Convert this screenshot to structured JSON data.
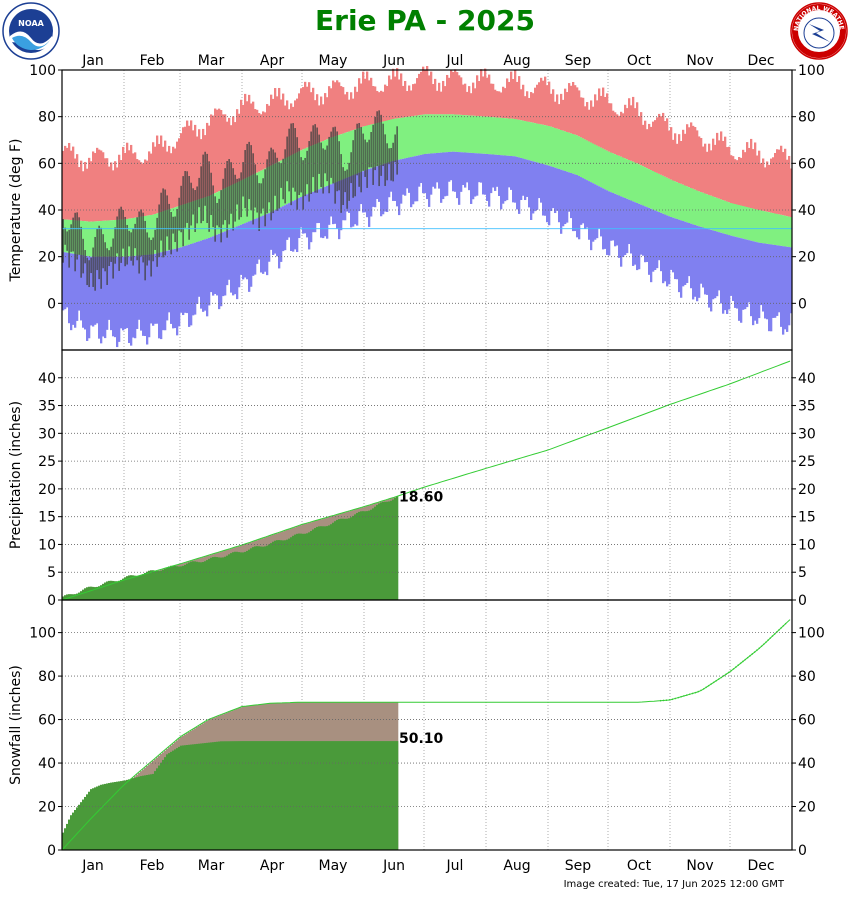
{
  "title": "Erie PA - 2025",
  "footer": "Image created: Tue, 17 Jun 2025 12:00 GMT",
  "logos": {
    "left": {
      "icon": "noaa-logo",
      "text": "NOAA",
      "colors": [
        "#1c3f94",
        "#3aa0e0"
      ]
    },
    "right": {
      "icon": "nws-logo",
      "text": "NATIONAL WEATHER SERVICE",
      "colors": [
        "#cc0000",
        "#1c3f94"
      ]
    }
  },
  "months": [
    "Jan",
    "Feb",
    "Mar",
    "Apr",
    "May",
    "Jun",
    "Jul",
    "Aug",
    "Sep",
    "Oct",
    "Nov",
    "Dec"
  ],
  "colors": {
    "record_high": "#f08080",
    "normal_range": "#80f080",
    "record_low": "#8080f0",
    "observed_bar": "#404040",
    "observed_precip": "#4a9a3a",
    "normal_precip": "#a89080",
    "normal_line": "#33cc33",
    "title": "#008000"
  },
  "chart_data": [
    {
      "type": "bar",
      "panel": "temperature",
      "ylabel": "Temperature (deg F)",
      "yticks": [
        0,
        20,
        40,
        60,
        80,
        100
      ],
      "ylim": [
        -20,
        100
      ],
      "xlim_days": [
        1,
        365
      ],
      "grid": true,
      "series": [
        {
          "key": "record_high",
          "x_day": [
            1,
            15,
            32,
            46,
            60,
            74,
            91,
            105,
            121,
            135,
            152,
            166,
            182,
            196,
            213,
            227,
            244,
            258,
            274,
            288,
            305,
            319,
            335,
            349,
            365
          ],
          "values": [
            64,
            62,
            63,
            65,
            72,
            78,
            84,
            86,
            90,
            91,
            94,
            95,
            97,
            96,
            95,
            94,
            92,
            90,
            86,
            82,
            75,
            72,
            66,
            64,
            62
          ]
        },
        {
          "key": "normal_high",
          "x_day": [
            1,
            15,
            32,
            46,
            60,
            74,
            91,
            105,
            121,
            135,
            152,
            166,
            182,
            196,
            213,
            227,
            244,
            258,
            274,
            288,
            305,
            319,
            335,
            349,
            365
          ],
          "values": [
            36,
            35,
            36,
            38,
            42,
            46,
            53,
            59,
            66,
            71,
            76,
            79,
            81,
            81,
            80,
            79,
            76,
            72,
            65,
            60,
            53,
            48,
            43,
            40,
            37
          ]
        },
        {
          "key": "normal_low",
          "x_day": [
            1,
            15,
            32,
            46,
            60,
            74,
            91,
            105,
            121,
            135,
            152,
            166,
            182,
            196,
            213,
            227,
            244,
            258,
            274,
            288,
            305,
            319,
            335,
            349,
            365
          ],
          "values": [
            22,
            20,
            20,
            21,
            24,
            28,
            34,
            39,
            46,
            51,
            57,
            61,
            64,
            65,
            64,
            63,
            59,
            55,
            48,
            43,
            37,
            33,
            29,
            26,
            24
          ]
        },
        {
          "key": "record_low",
          "x_day": [
            1,
            15,
            32,
            46,
            60,
            74,
            91,
            105,
            121,
            135,
            152,
            166,
            182,
            196,
            213,
            227,
            244,
            258,
            274,
            288,
            305,
            319,
            335,
            349,
            365
          ],
          "values": [
            -5,
            -12,
            -14,
            -12,
            -8,
            0,
            8,
            18,
            28,
            32,
            38,
            43,
            47,
            48,
            47,
            44,
            38,
            32,
            24,
            18,
            10,
            4,
            -2,
            -6,
            -10
          ]
        },
        {
          "key": "observed_high",
          "x_day": [
            1,
            8,
            15,
            22,
            29,
            36,
            43,
            50,
            57,
            64,
            71,
            78,
            85,
            92,
            99,
            106,
            113,
            120,
            127,
            134,
            141,
            148,
            155,
            162,
            168
          ],
          "values": [
            40,
            32,
            24,
            28,
            34,
            38,
            30,
            42,
            44,
            52,
            60,
            50,
            56,
            64,
            58,
            60,
            72,
            68,
            70,
            74,
            62,
            70,
            78,
            74,
            72
          ]
        },
        {
          "key": "observed_low",
          "x_day": [
            1,
            8,
            15,
            22,
            29,
            36,
            43,
            50,
            57,
            64,
            71,
            78,
            85,
            92,
            99,
            106,
            113,
            120,
            127,
            134,
            141,
            148,
            155,
            162,
            168
          ],
          "values": [
            22,
            18,
            8,
            12,
            18,
            20,
            14,
            22,
            26,
            32,
            38,
            30,
            34,
            42,
            36,
            40,
            48,
            44,
            50,
            52,
            42,
            50,
            56,
            54,
            56
          ]
        }
      ]
    },
    {
      "type": "area",
      "panel": "precipitation",
      "ylabel": "Precipitation (inches)",
      "yticks": [
        0,
        5,
        10,
        15,
        20,
        25,
        30,
        35,
        40
      ],
      "ylim": [
        0,
        45
      ],
      "grid": true,
      "annotation": "18.60",
      "series": [
        {
          "key": "observed_precip",
          "x_day": [
            1,
            15,
            32,
            46,
            60,
            74,
            91,
            105,
            121,
            135,
            152,
            168
          ],
          "values": [
            0.5,
            2.3,
            4.0,
            5.2,
            6.3,
            7.3,
            8.8,
            10.2,
            12.0,
            13.8,
            16.0,
            18.6
          ]
        },
        {
          "key": "normal_precip",
          "x_day": [
            1,
            32,
            60,
            91,
            121,
            152,
            168,
            182,
            213,
            244,
            274,
            305,
            335,
            365
          ],
          "values": [
            0,
            3.6,
            6.5,
            9.9,
            13.6,
            16.8,
            18.6,
            20.3,
            23.7,
            27.0,
            31.0,
            35.2,
            38.9,
            43.0
          ]
        }
      ]
    },
    {
      "type": "area",
      "panel": "snowfall",
      "ylabel": "Snowfall (inches)",
      "yticks": [
        0,
        20,
        40,
        60,
        80,
        100
      ],
      "ylim": [
        0,
        115
      ],
      "grid": true,
      "annotation": "50.10",
      "series": [
        {
          "key": "observed_snow",
          "x_day": [
            1,
            5,
            10,
            15,
            20,
            25,
            32,
            40,
            46,
            53,
            60,
            70,
            80,
            91,
            121,
            152,
            168
          ],
          "values": [
            8,
            16,
            22,
            28,
            30,
            31,
            32,
            34,
            35,
            44,
            48,
            49,
            50,
            50.1,
            50.1,
            50.1,
            50.1
          ]
        },
        {
          "key": "normal_snow",
          "x_day": [
            1,
            15,
            32,
            46,
            60,
            74,
            91,
            105,
            121,
            135,
            152,
            168,
            200,
            230,
            260,
            290,
            305,
            320,
            335,
            350,
            365
          ],
          "values": [
            0,
            14,
            30,
            41,
            52,
            60,
            66,
            67.5,
            68,
            68,
            68,
            68,
            68,
            68,
            68,
            68,
            69,
            73,
            82,
            93,
            106
          ]
        }
      ]
    }
  ]
}
